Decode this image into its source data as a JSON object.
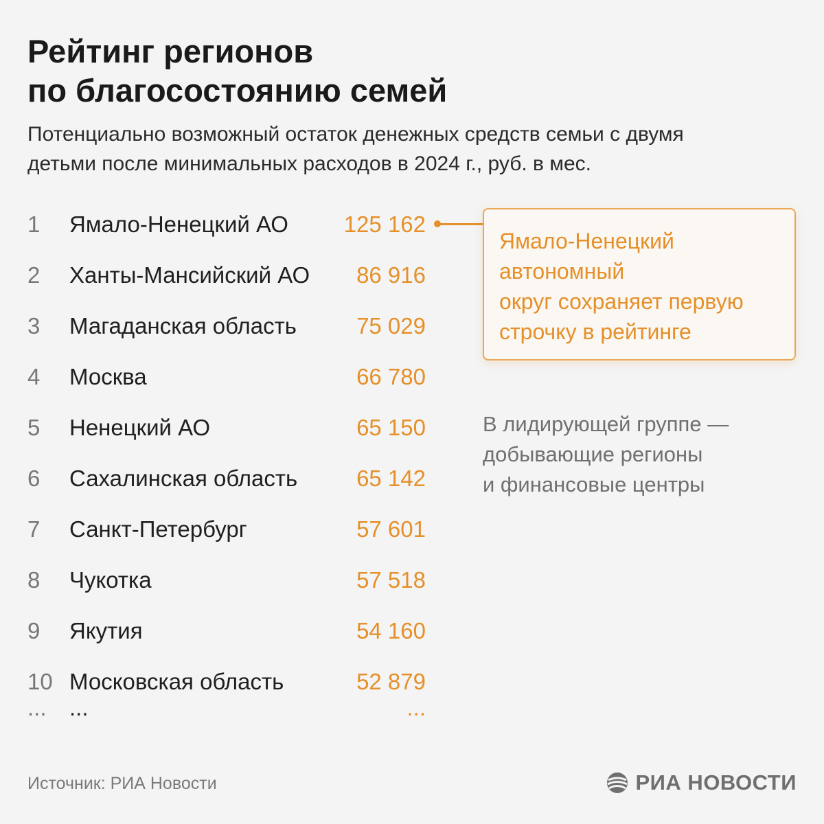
{
  "header": {
    "title_line1": "Рейтинг регионов",
    "title_line2": "по благосостоянию семей",
    "subtitle_line1": "Потенциально возможный остаток денежных средств семьи с двумя",
    "subtitle_line2": "детьми после минимальных расходов в 2024 г., руб. в мес."
  },
  "chart_data": {
    "type": "table",
    "title": "Рейтинг регионов по благосостоянию семей",
    "columns": [
      "rank",
      "region",
      "value"
    ],
    "rows": [
      {
        "rank": "1",
        "region": "Ямало-Ненецкий АО",
        "value": "125 162"
      },
      {
        "rank": "2",
        "region": "Ханты-Мансийский АО",
        "value": "86 916"
      },
      {
        "rank": "3",
        "region": "Магаданская область",
        "value": "75 029"
      },
      {
        "rank": "4",
        "region": "Москва",
        "value": "66 780"
      },
      {
        "rank": "5",
        "region": "Ненецкий АО",
        "value": "65 150"
      },
      {
        "rank": "6",
        "region": "Сахалинская область",
        "value": "65 142"
      },
      {
        "rank": "7",
        "region": "Санкт-Петербург",
        "value": "57 601"
      },
      {
        "rank": "8",
        "region": "Чукотка",
        "value": "57 518"
      },
      {
        "rank": "9",
        "region": "Якутия",
        "value": "54 160"
      },
      {
        "rank": "10",
        "region": "Московская область",
        "value": "52 879"
      }
    ],
    "continuation": {
      "rank": "...",
      "region": "...",
      "value": "..."
    }
  },
  "callout": {
    "line1": "Ямало-Ненецкий",
    "line2": "автономный",
    "line3": "округ сохраняет первую",
    "line4": "строчку в рейтинге"
  },
  "note": {
    "line1": "В лидирующей группе —",
    "line2": "добывающие регионы",
    "line3": "и финансовые центры"
  },
  "footer": {
    "source": "Источник: РИА Новости",
    "logo_text": "РИА НОВОСТИ",
    "logo_icon": "ria-logo-icon"
  },
  "colors": {
    "accent": "#e5902a",
    "text": "#1f1f1f",
    "muted": "#777777",
    "background": "#f4f4f4"
  }
}
